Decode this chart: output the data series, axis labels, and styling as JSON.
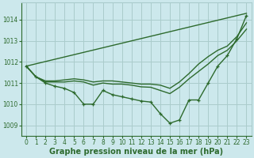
{
  "background_color": "#cce8ec",
  "grid_color": "#aacccc",
  "line_color": "#2d6a2d",
  "title": "Graphe pression niveau de la mer (hPa)",
  "tick_fontsize": 5.5,
  "title_fontsize": 7,
  "ylim": [
    1008.5,
    1014.8
  ],
  "yticks": [
    1009,
    1010,
    1011,
    1012,
    1013,
    1014
  ],
  "xlim": [
    -0.5,
    23.5
  ],
  "xticks": [
    0,
    1,
    2,
    3,
    4,
    5,
    6,
    7,
    8,
    9,
    10,
    11,
    12,
    13,
    14,
    15,
    16,
    17,
    18,
    19,
    20,
    21,
    22,
    23
  ],
  "line_straight_top": {
    "x": [
      0,
      23
    ],
    "y": [
      1011.8,
      1014.3
    ],
    "marker": null,
    "lw": 1.0
  },
  "line_upper_curve": {
    "x": [
      0,
      1,
      2,
      3,
      4,
      5,
      6,
      7,
      8,
      9,
      10,
      11,
      12,
      13,
      14,
      15,
      16,
      17,
      18,
      19,
      20,
      21,
      22,
      23
    ],
    "y": [
      1011.8,
      1011.3,
      1011.1,
      1011.1,
      1011.15,
      1011.2,
      1011.15,
      1011.05,
      1011.1,
      1011.1,
      1011.05,
      1011.0,
      1010.95,
      1010.95,
      1010.9,
      1010.75,
      1011.05,
      1011.45,
      1011.9,
      1012.25,
      1012.55,
      1012.75,
      1013.2,
      1013.85
    ],
    "marker": null,
    "lw": 1.0
  },
  "line_mid_curve": {
    "x": [
      0,
      1,
      2,
      3,
      4,
      5,
      6,
      7,
      8,
      9,
      10,
      11,
      12,
      13,
      14,
      15,
      16,
      17,
      18,
      19,
      20,
      21,
      22,
      23
    ],
    "y": [
      1011.8,
      1011.3,
      1011.05,
      1011.05,
      1011.05,
      1011.1,
      1011.05,
      1010.9,
      1011.0,
      1010.95,
      1010.95,
      1010.9,
      1010.82,
      1010.8,
      1010.65,
      1010.5,
      1010.8,
      1011.2,
      1011.55,
      1011.9,
      1012.3,
      1012.55,
      1013.0,
      1013.55
    ],
    "marker": null,
    "lw": 1.0
  },
  "line_dip_markers": {
    "x": [
      0,
      1,
      2,
      3,
      4,
      5,
      6,
      7,
      8,
      9,
      10,
      11,
      12,
      13,
      14,
      15,
      16,
      17,
      18,
      19,
      20,
      21,
      22,
      23
    ],
    "y": [
      1011.8,
      1011.3,
      1011.0,
      1010.85,
      1010.75,
      1010.55,
      1010.0,
      1010.0,
      1010.65,
      1010.45,
      1010.35,
      1010.25,
      1010.15,
      1010.1,
      1009.55,
      1009.1,
      1009.25,
      1010.2,
      1010.2,
      1011.0,
      1011.8,
      1012.3,
      1013.1,
      1014.2
    ],
    "marker": "+",
    "markersize": 3.5,
    "lw": 1.0
  }
}
